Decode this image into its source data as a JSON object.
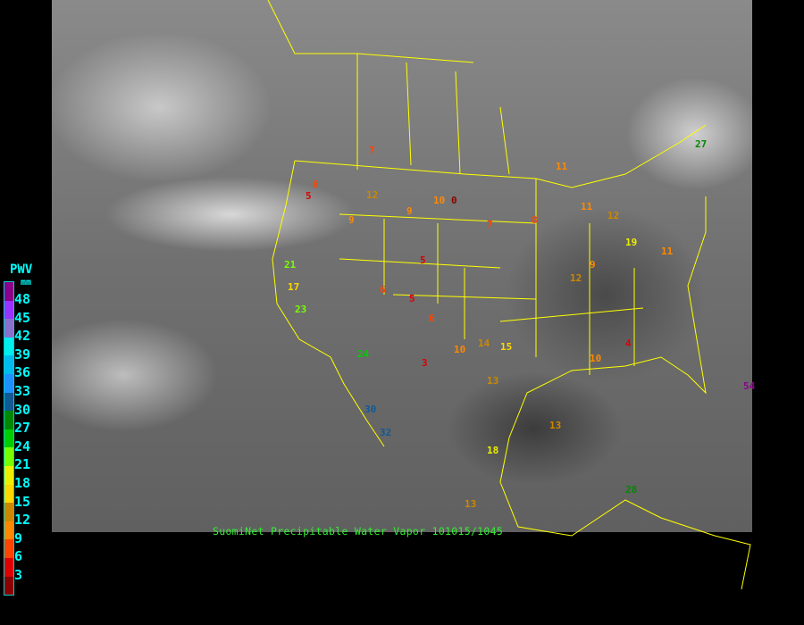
{
  "caption": "SuomiNet Precipitable Water Vapor 101015/1045",
  "legend": {
    "title": "PWV",
    "unit": "mm",
    "labels": [
      "48",
      "45",
      "42",
      "39",
      "36",
      "33",
      "30",
      "27",
      "24",
      "21",
      "18",
      "15",
      "12",
      "9",
      "6",
      "3"
    ],
    "colors": [
      "#8b008b",
      "#9933ff",
      "#8870cc",
      "#00eeee",
      "#00bbee",
      "#1e90ff",
      "#105a95",
      "#008800",
      "#00cc00",
      "#77ff00",
      "#eeee00",
      "#ffd700",
      "#cc8800",
      "#ff8800",
      "#ff4400",
      "#dd0000",
      "#8b0000"
    ]
  },
  "stations": [
    "7",
    "6",
    "5",
    "9",
    "12",
    "10",
    "0",
    "8",
    "5",
    "6",
    "3",
    "9",
    "11",
    "12",
    "13",
    "14",
    "18",
    "21",
    "17",
    "23",
    "24",
    "27",
    "30",
    "32",
    "13",
    "15",
    "10",
    "6",
    "5",
    "4",
    "12",
    "11",
    "9",
    "13",
    "19",
    "28",
    "54",
    "11",
    "10",
    "7"
  ],
  "map_colors": {
    "borders": "#ffff00",
    "satellite": "#808080"
  }
}
